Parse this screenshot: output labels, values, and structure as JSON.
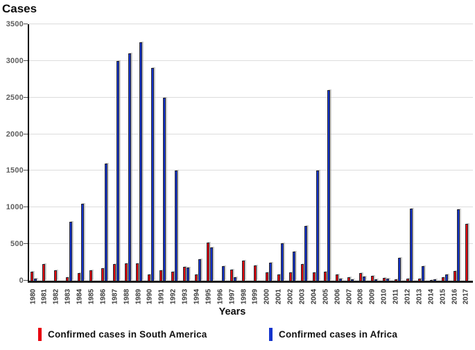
{
  "title": "Cases",
  "xlabel": "Years",
  "axis": {
    "y_ticks": [
      0,
      500,
      1000,
      1500,
      2000,
      2500,
      3000,
      3500
    ],
    "y_max": 3500
  },
  "legend": [
    {
      "label": "Confirmed cases in South America",
      "color": "#e8000d"
    },
    {
      "label": "Confirmed cases in Africa",
      "color": "#1535cd"
    }
  ],
  "chart_data": {
    "type": "bar",
    "title": "Cases",
    "xlabel": "Years",
    "ylabel": "Cases",
    "ylim": [
      0,
      3500
    ],
    "grid": "horizontal",
    "legend_position": "bottom",
    "categories": [
      "1980",
      "1981",
      "1982",
      "1983",
      "1984",
      "1985",
      "1986",
      "1987",
      "1988",
      "1989",
      "1990",
      "1991",
      "1992",
      "1993",
      "1994",
      "1995",
      "1996",
      "1997",
      "1998",
      "1999",
      "2000",
      "2001",
      "2002",
      "2003",
      "2004",
      "2005",
      "2006",
      "2007",
      "2008",
      "2009",
      "2010",
      "2011",
      "2012",
      "2013",
      "2014",
      "2015",
      "2016",
      "2017"
    ],
    "series": [
      {
        "name": "Confirmed cases in South America",
        "color": "#e8000d",
        "values": [
          120,
          230,
          140,
          50,
          100,
          140,
          170,
          230,
          240,
          240,
          90,
          140,
          120,
          190,
          90,
          520,
          0,
          150,
          275,
          210,
          110,
          90,
          110,
          230,
          110,
          120,
          90,
          50,
          100,
          70,
          40,
          20,
          25,
          30,
          10,
          50,
          130,
          780
        ]
      },
      {
        "name": "Confirmed cases in Africa",
        "color": "#1535cd",
        "values": [
          25,
          0,
          0,
          800,
          1050,
          0,
          1600,
          3000,
          3100,
          3250,
          2900,
          2500,
          1500,
          180,
          290,
          450,
          200,
          50,
          0,
          0,
          250,
          510,
          400,
          750,
          1500,
          2600,
          30,
          20,
          60,
          20,
          25,
          310,
          980,
          200,
          15,
          90,
          970,
          0
        ]
      }
    ]
  }
}
